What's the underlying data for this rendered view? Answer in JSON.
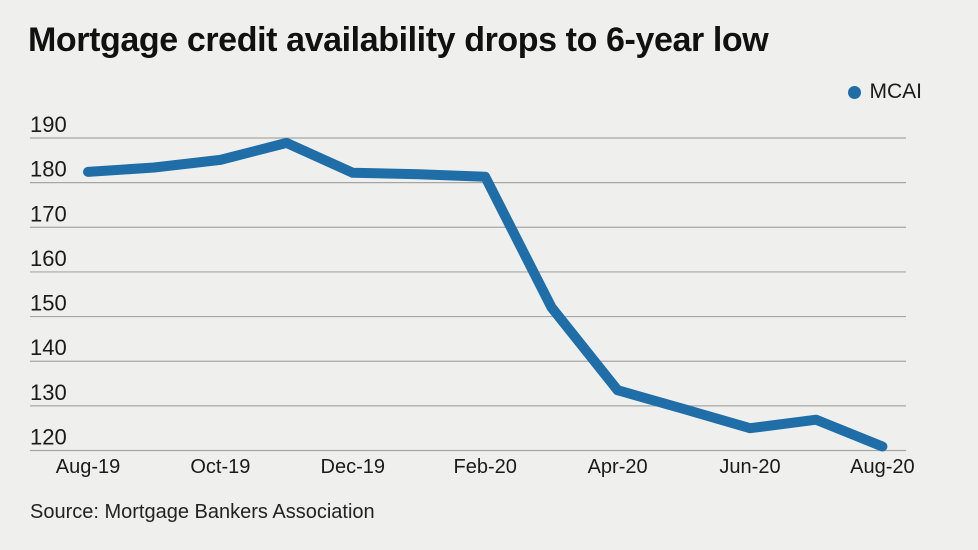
{
  "title": "Mortgage credit availability drops to 6-year low",
  "legend": {
    "label": "MCAI"
  },
  "source": "Source: Mortgage Bankers Association",
  "colors": {
    "background": "#eff0ee",
    "line": "#1f6ea8",
    "gridline": "#a6a6a6",
    "axis_text": "#1a1a1a",
    "title_text": "#111111"
  },
  "chart_data": {
    "type": "line",
    "title": "Mortgage credit availability drops to 6-year low",
    "categories": [
      "Aug-19",
      "Sep-19",
      "Oct-19",
      "Nov-19",
      "Dec-19",
      "Jan-20",
      "Feb-20",
      "Mar-20",
      "Apr-20",
      "May-20",
      "Jun-20",
      "Jul-20",
      "Aug-20"
    ],
    "series": [
      {
        "name": "MCAI",
        "values": [
          182.4,
          183.4,
          185.1,
          188.9,
          182.2,
          181.9,
          181.3,
          152.1,
          133.5,
          129.3,
          125.0,
          126.9,
          120.9
        ]
      }
    ],
    "x_tick_labels": [
      "Aug-19",
      "Oct-19",
      "Dec-19",
      "Feb-20",
      "Apr-20",
      "Jun-20",
      "Aug-20"
    ],
    "x_tick_indices": [
      0,
      2,
      4,
      6,
      8,
      10,
      12
    ],
    "y_ticks": [
      120,
      130,
      140,
      150,
      160,
      170,
      180,
      190
    ],
    "ylim": [
      120,
      190
    ],
    "grid": "horizontal",
    "legend_position": "top-right",
    "source": "Source: Mortgage Bankers Association"
  }
}
